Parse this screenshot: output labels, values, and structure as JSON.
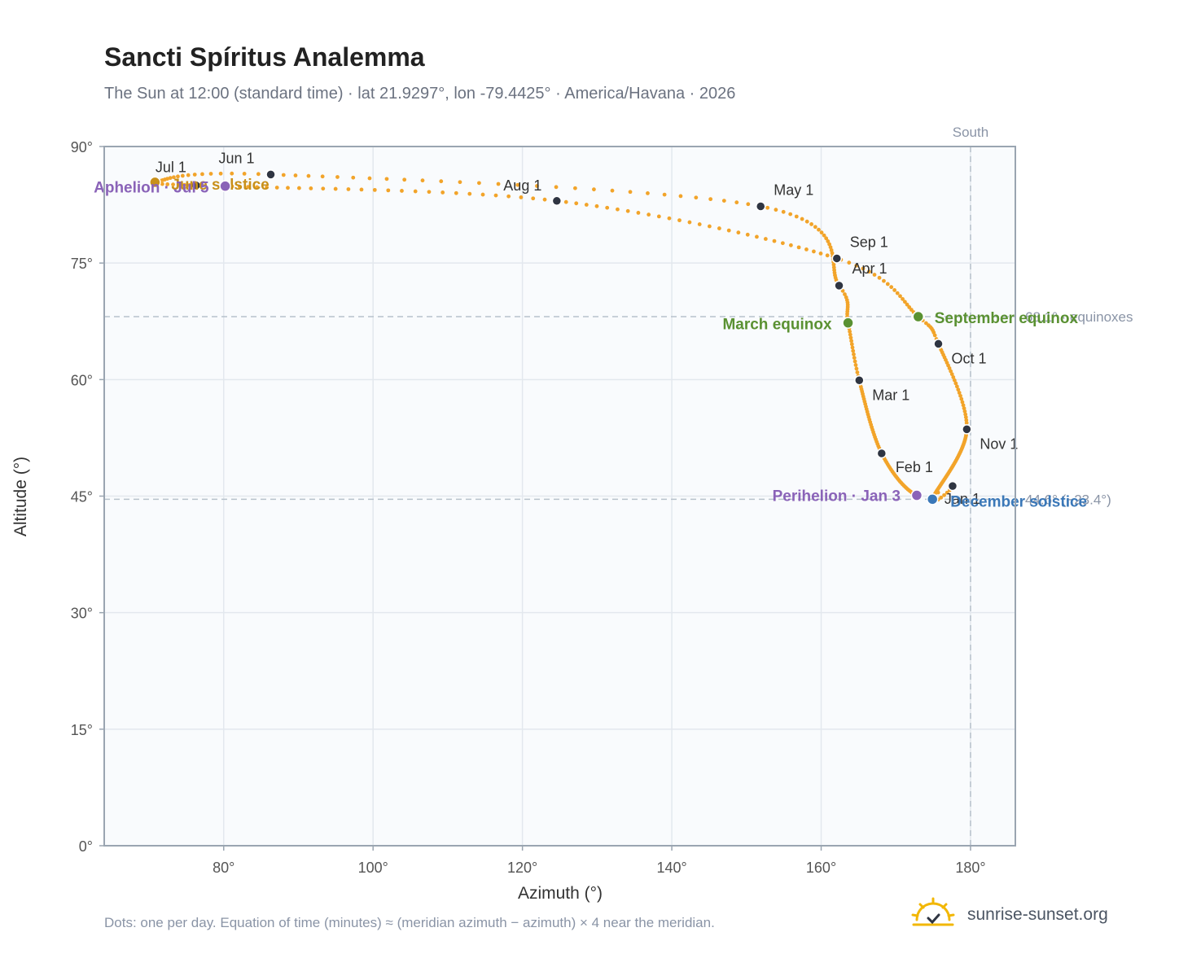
{
  "header": {
    "title": "Sancti Spíritus Analemma",
    "subtitle": "The Sun at 12:00 (standard time) · lat 21.9297°, lon -79.4425° · America/Havana · 2026"
  },
  "footer": {
    "note": "Dots: one per day. Equation of time (minutes) ≈ (meridian azimuth − azimuth) × 4 near the meridian.",
    "brand": "sunrise-sunset.org",
    "brand_icon": "sun-check-icon"
  },
  "chart_data": {
    "type": "scatter",
    "title": "Sancti Spíritus Analemma",
    "xlabel": "Azimuth (°)",
    "ylabel": "Altitude (°)",
    "xlim": [
      64,
      186
    ],
    "ylim": [
      0,
      90
    ],
    "x_ticks": [
      80,
      100,
      120,
      140,
      160,
      180
    ],
    "x_tick_labels": [
      "80°",
      "100°",
      "120°",
      "140°",
      "160°",
      "180°"
    ],
    "y_ticks": [
      0,
      15,
      30,
      45,
      60,
      75,
      90
    ],
    "y_tick_labels": [
      "0°",
      "15°",
      "30°",
      "45°",
      "60°",
      "75°",
      "90°"
    ],
    "grid": true,
    "colors": {
      "path": "#f2a42a",
      "month": "#2f3542",
      "equinox": "#5a9132",
      "solstice_june": "#c8901a",
      "solstice_dec": "#3b78b8",
      "apsis": "#8a63b8",
      "reference": "#b8c2cc",
      "plot_bg": "#f9fbfd",
      "frame": "#9aa5b1"
    },
    "reference_lines": {
      "south": {
        "azimuth": 180,
        "label": "South"
      },
      "equinox": {
        "altitude": 68.1,
        "label": "68.1° · equinoxes"
      },
      "december": {
        "altitude": 44.6,
        "label": "44.6° (−23.4°)"
      }
    },
    "months": [
      {
        "label": "Jan 1",
        "az": 177.6,
        "alt": 46.3
      },
      {
        "label": "Feb 1",
        "az": 168.1,
        "alt": 50.5
      },
      {
        "label": "Mar 1",
        "az": 165.1,
        "alt": 59.9
      },
      {
        "label": "Apr 1",
        "az": 162.4,
        "alt": 72.1
      },
      {
        "label": "May 1",
        "az": 151.9,
        "alt": 82.3
      },
      {
        "label": "Jun 1",
        "az": 86.3,
        "alt": 86.4
      },
      {
        "label": "Jul 1",
        "az": 76.3,
        "alt": 85.0
      },
      {
        "label": "Aug 1",
        "az": 124.6,
        "alt": 83.0
      },
      {
        "label": "Sep 1",
        "az": 162.1,
        "alt": 75.6
      },
      {
        "label": "Oct 1",
        "az": 175.7,
        "alt": 64.6
      },
      {
        "label": "Nov 1",
        "az": 179.5,
        "alt": 53.6
      }
    ],
    "events": [
      {
        "label": "March equinox",
        "az": 163.6,
        "alt": 67.3,
        "kind": "equinox"
      },
      {
        "label": "September equinox",
        "az": 173.0,
        "alt": 68.1,
        "kind": "equinox"
      },
      {
        "label": "June solstice",
        "az": 70.8,
        "alt": 85.4,
        "kind": "solstice_june"
      },
      {
        "label": "December solstice",
        "az": 174.9,
        "alt": 44.6,
        "kind": "solstice_dec"
      },
      {
        "label": "Perihelion · Jan 3",
        "az": 172.8,
        "alt": 45.1,
        "kind": "apsis"
      },
      {
        "label": "Aphelion · Jul 5",
        "az": 80.2,
        "alt": 84.9,
        "kind": "apsis"
      }
    ]
  }
}
